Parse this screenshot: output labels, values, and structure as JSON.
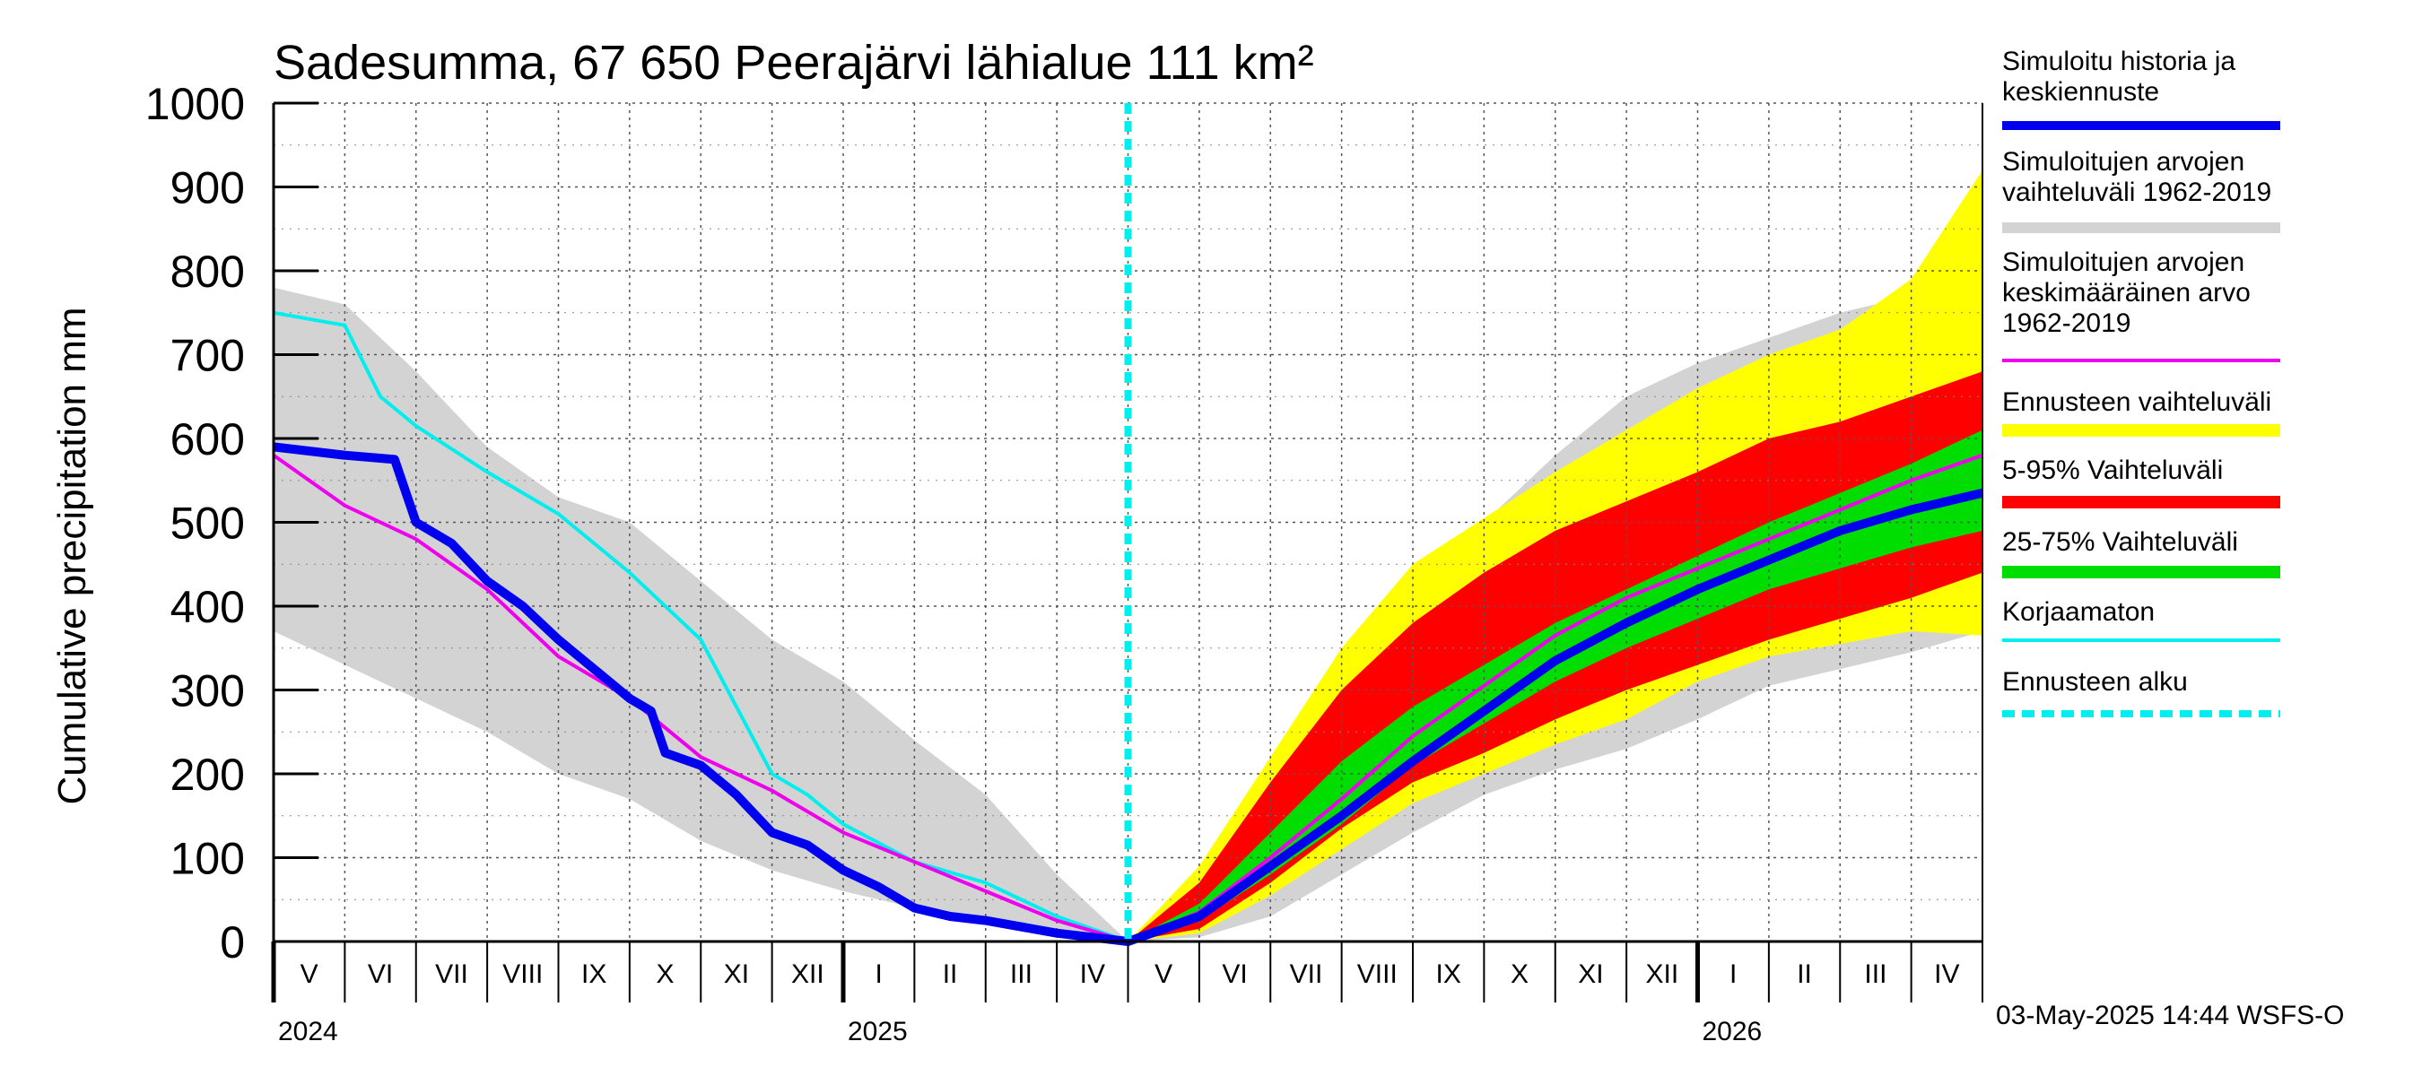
{
  "chart_data": {
    "type": "area",
    "title": "Sadesumma, 67 650 Peerajärvi lähialue 111 km²",
    "ylabel": "Cumulative precipitation   mm",
    "xlabel": "",
    "ylim": [
      0,
      1000
    ],
    "yticks": [
      "0",
      "100",
      "200",
      "300",
      "400",
      "500",
      "600",
      "700",
      "800",
      "900",
      "1000"
    ],
    "months": [
      "V",
      "VI",
      "VII",
      "VIII",
      "IX",
      "X",
      "XI",
      "XII",
      "I",
      "II",
      "III",
      "IV",
      "V",
      "VI",
      "VII",
      "VIII",
      "IX",
      "X",
      "XI",
      "XII",
      "I",
      "II",
      "III",
      "IV"
    ],
    "years": [
      {
        "label": "2024",
        "month_index": 0
      },
      {
        "label": "2025",
        "month_index": 8
      },
      {
        "label": "2026",
        "month_index": 20
      }
    ],
    "forecast_start_month": 12,
    "grid": true,
    "legend_position": "right",
    "legend": [
      {
        "label": "Simuloitu historia ja keskiennuste",
        "color": "#0000ee"
      },
      {
        "label": "Simuloitujen arvojen vaihteluväli 1962-2019",
        "color": "#d3d3d3"
      },
      {
        "label": "Simuloitujen arvojen keskimääräinen arvo 1962-2019",
        "color": "#ee00ee"
      },
      {
        "label": "Ennusteen vaihteluväli",
        "color": "#ffff00"
      },
      {
        "label": "5-95% Vaihteluväli",
        "color": "#ff0000"
      },
      {
        "label": "25-75% Vaihteluväli",
        "color": "#00dd00"
      },
      {
        "label": "Korjaamaton",
        "color": "#00eeee"
      },
      {
        "label": "Ennusteen alku",
        "color": "#00eeee"
      }
    ],
    "series": [
      {
        "name": "Simuloitu historia ja keskiennuste",
        "x": [
          0,
          1,
          1.7,
          2,
          2.5,
          3,
          3.5,
          4,
          4.5,
          5,
          5.3,
          5.5,
          6,
          6.5,
          7,
          7.5,
          8,
          8.5,
          9,
          9.5,
          10,
          11,
          12,
          13,
          14,
          15,
          16,
          17,
          18,
          19,
          20,
          21,
          22,
          23,
          24
        ],
        "values": [
          590,
          580,
          575,
          500,
          475,
          430,
          400,
          360,
          325,
          290,
          275,
          225,
          210,
          175,
          130,
          115,
          85,
          65,
          40,
          30,
          25,
          10,
          0,
          30,
          90,
          150,
          215,
          275,
          335,
          380,
          420,
          455,
          490,
          515,
          535
        ]
      },
      {
        "name": "Simuloitujen arvojen keskimääräinen arvo 1962-2019",
        "x": [
          0,
          1,
          2,
          3,
          4,
          5,
          6,
          7,
          8,
          9,
          10,
          11,
          12,
          13,
          14,
          15,
          16,
          17,
          18,
          19,
          20,
          21,
          22,
          23,
          24
        ],
        "values": [
          580,
          520,
          480,
          420,
          340,
          290,
          220,
          180,
          130,
          95,
          60,
          25,
          0,
          35,
          100,
          170,
          245,
          305,
          365,
          410,
          445,
          480,
          515,
          550,
          580
        ]
      },
      {
        "name": "Korjaamaton",
        "x": [
          0,
          1,
          1.5,
          2,
          3,
          4,
          5,
          6,
          7,
          7.5,
          8,
          9,
          10,
          11,
          12
        ],
        "values": [
          750,
          735,
          650,
          615,
          560,
          510,
          440,
          360,
          200,
          175,
          140,
          95,
          70,
          30,
          0
        ]
      },
      {
        "name": "Simuloitujen arvojen vaihteluväli 1962-2019 (ala)",
        "x": [
          0,
          1,
          2,
          3,
          4,
          5,
          6,
          7,
          8,
          9,
          10,
          11,
          12,
          13,
          14,
          15,
          16,
          17,
          18,
          19,
          20,
          21,
          22,
          23,
          24
        ],
        "values": [
          370,
          330,
          290,
          250,
          200,
          170,
          120,
          85,
          60,
          40,
          20,
          5,
          0,
          5,
          30,
          80,
          130,
          175,
          205,
          230,
          265,
          305,
          325,
          345,
          370
        ]
      },
      {
        "name": "Simuloitujen arvojen vaihteluväli 1962-2019 (ylä)",
        "x": [
          0,
          1,
          2,
          3,
          4,
          5,
          6,
          7,
          8,
          9,
          10,
          11,
          12,
          13,
          14,
          15,
          16,
          17,
          18,
          19,
          20,
          21,
          22,
          23,
          24
        ],
        "values": [
          780,
          760,
          680,
          590,
          530,
          500,
          430,
          360,
          310,
          240,
          175,
          80,
          0,
          60,
          160,
          270,
          420,
          500,
          580,
          650,
          690,
          720,
          750,
          770,
          790
        ]
      },
      {
        "name": "Ennusteen vaihteluväli (ala)",
        "x": [
          12,
          13,
          14,
          15,
          16,
          17,
          18,
          19,
          20,
          21,
          22,
          23,
          24
        ],
        "values": [
          0,
          10,
          55,
          110,
          165,
          200,
          235,
          265,
          310,
          340,
          355,
          370,
          365
        ]
      },
      {
        "name": "Ennusteen vaihteluväli (ylä)",
        "x": [
          12,
          13,
          14,
          15,
          16,
          17,
          18,
          19,
          20,
          21,
          22,
          23,
          24
        ],
        "values": [
          0,
          90,
          220,
          350,
          450,
          505,
          560,
          610,
          660,
          700,
          730,
          790,
          920
        ]
      },
      {
        "name": "5-95% Vaihteluväli (ala)",
        "x": [
          12,
          13,
          14,
          15,
          16,
          17,
          18,
          19,
          20,
          21,
          22,
          23,
          24
        ],
        "values": [
          0,
          15,
          70,
          135,
          190,
          225,
          265,
          300,
          330,
          360,
          385,
          410,
          440
        ]
      },
      {
        "name": "5-95% Vaihteluväli (ylä)",
        "x": [
          12,
          13,
          14,
          15,
          16,
          17,
          18,
          19,
          20,
          21,
          22,
          23,
          24
        ],
        "values": [
          0,
          70,
          190,
          300,
          380,
          440,
          490,
          525,
          560,
          600,
          620,
          650,
          680
        ]
      },
      {
        "name": "25-75% Vaihteluväli (ala)",
        "x": [
          12,
          13,
          14,
          15,
          16,
          17,
          18,
          19,
          20,
          21,
          22,
          23,
          24
        ],
        "values": [
          0,
          25,
          80,
          140,
          210,
          260,
          310,
          350,
          385,
          420,
          445,
          470,
          490
        ]
      },
      {
        "name": "25-75% Vaihteluväli (ylä)",
        "x": [
          12,
          13,
          14,
          15,
          16,
          17,
          18,
          19,
          20,
          21,
          22,
          23,
          24
        ],
        "values": [
          0,
          45,
          130,
          215,
          280,
          330,
          380,
          420,
          460,
          500,
          535,
          570,
          610
        ]
      }
    ]
  },
  "footer": {
    "timestamp": "03-May-2025 14:44 WSFS-O"
  }
}
